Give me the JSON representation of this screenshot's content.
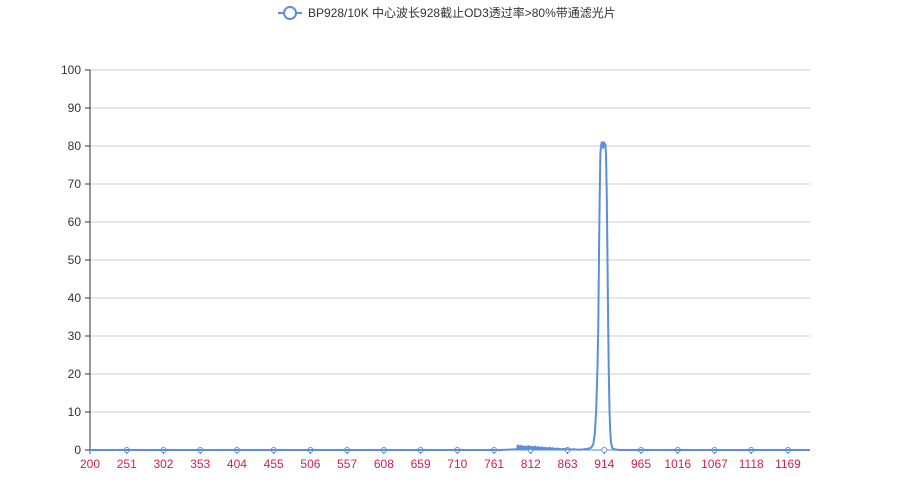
{
  "chart_data": {
    "type": "line",
    "title": "",
    "xlabel": "",
    "ylabel": "",
    "x_categories": [
      "200",
      "251",
      "302",
      "353",
      "404",
      "455",
      "506",
      "557",
      "608",
      "659",
      "710",
      "761",
      "812",
      "863",
      "914",
      "965",
      "1016",
      "1067",
      "1118",
      "1169"
    ],
    "ylim": [
      0,
      100
    ],
    "y_ticks": [
      0,
      10,
      20,
      30,
      40,
      50,
      60,
      70,
      80,
      90,
      100
    ],
    "xlim": [
      200,
      1220
    ],
    "grid": true,
    "legend_position": "top-center",
    "series": [
      {
        "name": "BP928/10K 中心波长928截止OD3透过率>80%带通滤光片",
        "color": "#5b8fd9",
        "x": [
          200,
          780,
          805,
          806,
          807,
          808,
          809,
          810,
          811,
          812,
          813,
          814,
          815,
          816,
          817,
          818,
          819,
          820,
          821,
          822,
          823,
          824,
          825,
          826,
          827,
          828,
          829,
          830,
          831,
          832,
          833,
          834,
          835,
          836,
          837,
          838,
          839,
          840,
          841,
          842,
          843,
          844,
          845,
          846,
          847,
          848,
          849,
          850,
          851,
          852,
          853,
          854,
          855,
          856,
          857,
          858,
          859,
          860,
          861,
          862,
          863,
          864,
          865,
          866,
          867,
          868,
          869,
          870,
          875,
          880,
          885,
          890,
          895,
          900,
          905,
          910,
          913,
          915,
          917,
          919,
          920,
          921,
          922,
          923,
          924,
          925,
          926,
          927,
          928,
          929,
          930,
          931,
          932,
          933,
          934,
          935,
          936,
          937,
          938,
          940,
          943,
          946,
          950,
          1000,
          1100,
          1220
        ],
        "y": [
          0,
          0,
          0.2,
          1.2,
          0.3,
          1.0,
          0.2,
          1.1,
          0.1,
          0.9,
          0.3,
          1.0,
          0.1,
          0.6,
          0.8,
          0.2,
          0.9,
          0.3,
          1.0,
          0.2,
          0.8,
          0.4,
          0.9,
          0.1,
          0.7,
          0.3,
          0.8,
          0.2,
          0.9,
          0.4,
          0.6,
          0.1,
          0.8,
          0.3,
          0.5,
          0.2,
          0.7,
          0.3,
          0.6,
          0.1,
          0.5,
          0.3,
          0.6,
          0.2,
          0.4,
          0.1,
          0.5,
          0.3,
          0.6,
          0.1,
          0.4,
          0.2,
          0.5,
          0.1,
          0.3,
          0.2,
          0.4,
          0.1,
          0.3,
          0.2,
          0.4,
          0.1,
          0.2,
          0.3,
          0.1,
          0.2,
          0.1,
          0.3,
          0.2,
          0.1,
          0.2,
          0.1,
          0.1,
          0.2,
          0.3,
          0.6,
          1.5,
          4,
          10,
          22,
          32,
          50,
          66,
          78,
          80,
          81,
          80.5,
          79.5,
          81,
          80,
          80.5,
          78,
          68,
          52,
          34,
          20,
          10,
          5,
          2,
          0.5,
          0.2,
          0.1,
          0,
          0,
          0,
          0
        ]
      }
    ]
  }
}
